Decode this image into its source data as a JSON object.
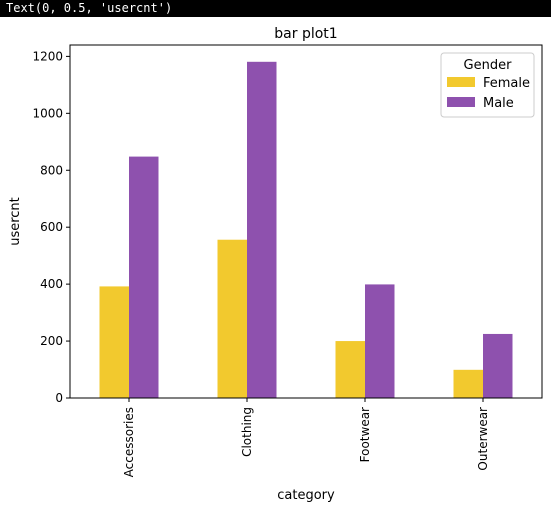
{
  "output_text": "Text(0, 0.5, 'usercnt')",
  "chart_data": {
    "type": "bar",
    "title": "bar plot1",
    "xlabel": "category",
    "ylabel": "usercnt",
    "categories": [
      "Accessories",
      "Clothing",
      "Footwear",
      "Outerwear"
    ],
    "series": [
      {
        "name": "Female",
        "values": [
          392,
          556,
          200,
          99
        ],
        "color": "#f2c92e"
      },
      {
        "name": "Male",
        "values": [
          848,
          1181,
          399,
          225
        ],
        "color": "#8e51ae"
      }
    ],
    "ylim": [
      0,
      1240
    ],
    "yticks": [
      0,
      200,
      400,
      600,
      800,
      1000,
      1200
    ],
    "grid": false,
    "legend": {
      "title": "Gender",
      "position": "top-right"
    }
  }
}
